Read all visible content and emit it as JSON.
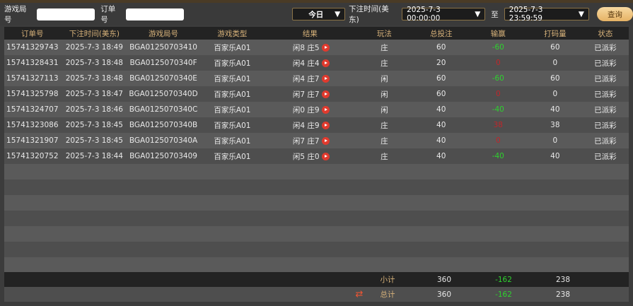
{
  "filters": {
    "game_no_label": "游戏局号",
    "game_no_value": "",
    "order_no_label": "订单号",
    "order_no_value": "",
    "period": "今日",
    "time_label": "下注时间(美东)",
    "start": "2025-7-3 00:00:00",
    "to_label": "至",
    "end": "2025-7-3 23:59:59",
    "query_button": "查询"
  },
  "columns": [
    "订单号",
    "下注时间(美东)",
    "游戏局号",
    "游戏类型",
    "结果",
    "玩法",
    "总投注",
    "输赢",
    "打码量",
    "状态"
  ],
  "rows": [
    [
      "15741329743",
      "2025-7-3 18:49",
      "BGA01250703410",
      "百家乐A01",
      "闲8 庄5",
      "庄",
      "60",
      "-60",
      "60",
      "已派彩"
    ],
    [
      "15741328431",
      "2025-7-3 18:48",
      "BGA0125070340F",
      "百家乐A01",
      "闲4 庄4",
      "庄",
      "20",
      "0",
      "0",
      "已派彩"
    ],
    [
      "15741327113",
      "2025-7-3 18:48",
      "BGA0125070340E",
      "百家乐A01",
      "闲4 庄7",
      "闲",
      "60",
      "-60",
      "60",
      "已派彩"
    ],
    [
      "15741325798",
      "2025-7-3 18:47",
      "BGA0125070340D",
      "百家乐A01",
      "闲7 庄7",
      "闲",
      "60",
      "0",
      "0",
      "已派彩"
    ],
    [
      "15741324707",
      "2025-7-3 18:46",
      "BGA0125070340C",
      "百家乐A01",
      "闲0 庄9",
      "闲",
      "40",
      "-40",
      "40",
      "已派彩"
    ],
    [
      "15741323086",
      "2025-7-3 18:45",
      "BGA0125070340B",
      "百家乐A01",
      "闲4 庄9",
      "庄",
      "40",
      "38",
      "38",
      "已派彩"
    ],
    [
      "15741321907",
      "2025-7-3 18:45",
      "BGA0125070340A",
      "百家乐A01",
      "闲7 庄7",
      "庄",
      "40",
      "0",
      "0",
      "已派彩"
    ],
    [
      "15741320752",
      "2025-7-3 18:44",
      "BGA01250703409",
      "百家乐A01",
      "闲5 庄0",
      "庄",
      "40",
      "-40",
      "40",
      "已派彩"
    ]
  ],
  "subtotal": {
    "label": "小计",
    "bet": "360",
    "winloss": "-162",
    "turnover": "238"
  },
  "total": {
    "label": "总计",
    "bet": "360",
    "winloss": "-162",
    "turnover": "238"
  },
  "colors": {
    "win": "#2ed12e",
    "loss": "#c0262a",
    "header_text": "#d7b27a"
  }
}
